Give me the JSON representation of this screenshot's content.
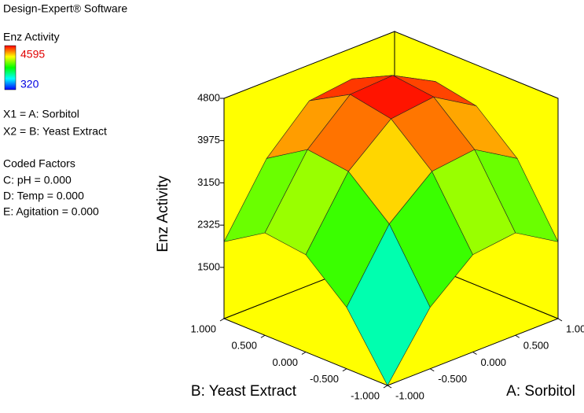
{
  "chart_data": {
    "type": "surface",
    "software": "Design-Expert® Software",
    "colorbar": {
      "title": "Enz Activity",
      "max": 4595,
      "min": 320
    },
    "factors": [
      "X1 = A: Sorbitol",
      "X2 = B: Yeast Extract"
    ],
    "coded_title": "Coded Factors",
    "coded_factors": [
      "C: pH = 0.000",
      "D: Temp = 0.000",
      "E: Agitation = 0.000"
    ],
    "xlabel": "A: Sorbitol",
    "ylabel": "B: Yeast Extract",
    "zlabel": "Enz Activity",
    "x": [
      -1,
      -0.5,
      0,
      0.5,
      1
    ],
    "y": [
      -1,
      -0.5,
      0,
      0.5,
      1
    ],
    "z": [
      [
        500,
        1700,
        2400,
        2500,
        2000
      ],
      [
        1700,
        3000,
        3700,
        3800,
        3300
      ],
      [
        2400,
        3700,
        4400,
        4550,
        4100
      ],
      [
        2500,
        3800,
        4500,
        4595,
        4200
      ],
      [
        2000,
        3300,
        4000,
        4150,
        3700
      ]
    ],
    "xlim": [
      -1,
      1
    ],
    "ylim": [
      -1,
      1
    ],
    "zlim": [
      500,
      4800
    ],
    "xticks": [
      {
        "value": -1,
        "label": "-1.000"
      },
      {
        "value": -0.5,
        "label": "-0.500"
      },
      {
        "value": 0,
        "label": "0.000"
      },
      {
        "value": 0.5,
        "label": "0.500"
      },
      {
        "value": 1,
        "label": "1.000"
      }
    ],
    "yticks": [
      {
        "value": -1,
        "label": "-1.000"
      },
      {
        "value": -0.5,
        "label": "-0.500"
      },
      {
        "value": 0,
        "label": "0.000"
      },
      {
        "value": 0.5,
        "label": "0.500"
      },
      {
        "value": 1,
        "label": "1.000"
      }
    ],
    "zticks": [
      1500,
      2325,
      3150,
      3975,
      4800
    ],
    "wall_color": "#ffff00"
  }
}
